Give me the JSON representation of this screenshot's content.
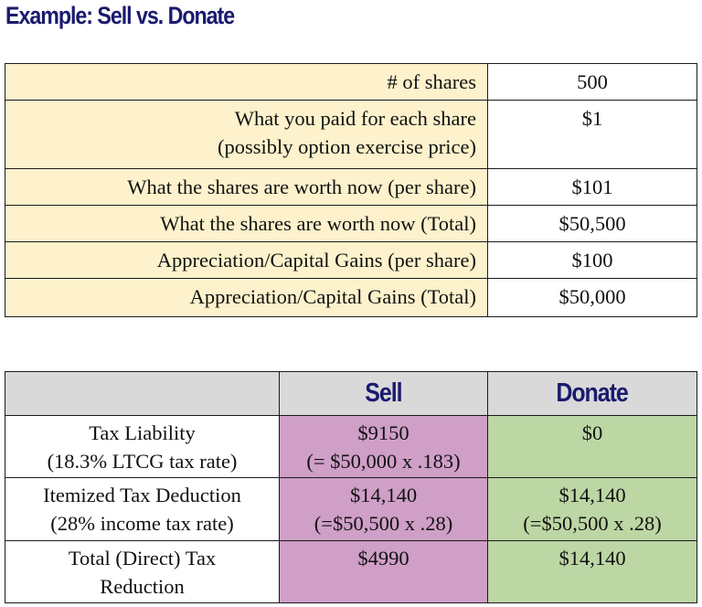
{
  "title": "Example: Sell vs. Donate",
  "facts_table": {
    "rows": [
      {
        "label": "# of shares",
        "value": "500"
      },
      {
        "label_lines": [
          "What you paid for each share",
          "(possibly option exercise price)"
        ],
        "value": "$1"
      },
      {
        "label": "What the shares are worth now (per share)",
        "value": "$101"
      },
      {
        "label": "What the shares are worth now (Total)",
        "value": "$50,500"
      },
      {
        "label": "Appreciation/Capital Gains (per share)",
        "value": "$100"
      },
      {
        "label": "Appreciation/Capital Gains (Total)",
        "value": "$50,000"
      }
    ]
  },
  "comparison_table": {
    "headers": {
      "blank": "",
      "sell": "Sell",
      "donate": "Donate"
    },
    "rows": [
      {
        "label_lines": [
          "Tax Liability",
          "(18.3% LTCG tax rate)"
        ],
        "sell_lines": [
          "$9150",
          "(= $50,000 x .183)"
        ],
        "donate_lines": [
          "$0"
        ]
      },
      {
        "label_lines": [
          "Itemized Tax Deduction",
          "(28% income tax rate)"
        ],
        "sell_lines": [
          "$14,140",
          "(=$50,500 x .28)"
        ],
        "donate_lines": [
          "$14,140",
          "(=$50,500 x .28)"
        ]
      },
      {
        "label_lines": [
          "Total (Direct) Tax",
          "Reduction"
        ],
        "sell_lines": [
          "$4990"
        ],
        "donate_lines": [
          "$14,140"
        ]
      }
    ]
  },
  "colors": {
    "title": "#1a1a6e",
    "facts_label_bg": "#fdf2cc",
    "header_bg": "#d9d9d9",
    "sell_bg": "#cf9fc8",
    "donate_bg": "#bcd6a4"
  }
}
